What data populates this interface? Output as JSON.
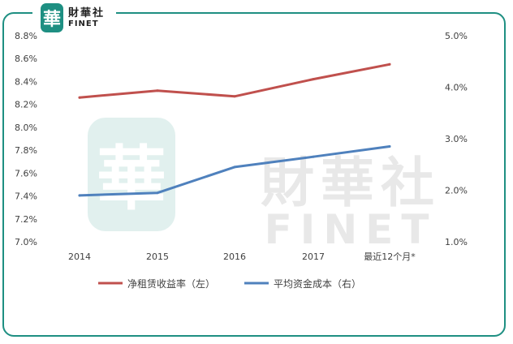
{
  "logo": {
    "badge_char": "華",
    "name_cn": "財華社",
    "name_en": "FINET"
  },
  "watermark": {
    "badge_char": "華",
    "name_cn": "財華社",
    "name_en": "FINET"
  },
  "colors": {
    "frame": "#1e8f82",
    "series_left": "#c0504d",
    "series_right": "#4f81bd",
    "gridline": "#d9d9d9",
    "axis_text": "#404040"
  },
  "chart_data": {
    "type": "line",
    "categories": [
      "2014",
      "2015",
      "2016",
      "2017",
      "最近12个月*"
    ],
    "series": [
      {
        "name": "净租赁收益率（左）",
        "axis": "left",
        "color": "#c0504d",
        "values": [
          8.26,
          8.32,
          8.27,
          8.42,
          8.55
        ]
      },
      {
        "name": "平均资金成本（右）",
        "axis": "right",
        "color": "#4f81bd",
        "values": [
          1.9,
          1.95,
          2.45,
          2.65,
          2.85
        ]
      }
    ],
    "y_left": {
      "min": 7.0,
      "max": 8.8,
      "step": 0.2,
      "ticks": [
        "7.0%",
        "7.2%",
        "7.4%",
        "7.6%",
        "7.8%",
        "8.0%",
        "8.2%",
        "8.4%",
        "8.6%",
        "8.8%"
      ]
    },
    "y_right": {
      "min": 1.0,
      "max": 5.0,
      "step": 1.0,
      "ticks": [
        "1.0%",
        "2.0%",
        "3.0%",
        "4.0%",
        "5.0%"
      ]
    },
    "gridlines": false,
    "legend_position": "bottom"
  }
}
